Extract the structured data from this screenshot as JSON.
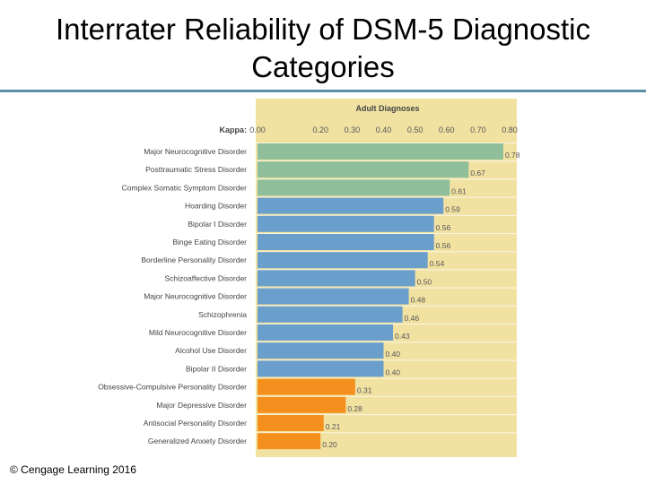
{
  "slide": {
    "title_line1": "Interrater Reliability of DSM-5 Diagnostic",
    "title_line2": "Categories",
    "footer": "© Cengage Learning 2016"
  },
  "chart_data": {
    "type": "bar",
    "orientation": "horizontal",
    "title": "Adult Diagnoses",
    "xlabel": "Kappa:",
    "xlim": [
      0,
      0.82
    ],
    "tick_values": [
      0.0,
      0.2,
      0.3,
      0.4,
      0.5,
      0.6,
      0.7,
      0.8
    ],
    "tick_labels": [
      "0.00",
      "0.20",
      "0.30",
      "0.40",
      "0.50",
      "0.60",
      "0.70",
      "0.80"
    ],
    "categories": [
      "Major Neurocognitive Disorder",
      "Posttraumatic Stress Disorder",
      "Complex Somatic Symptom Disorder",
      "Hoarding Disorder",
      "Bipolar I Disorder",
      "Binge Eating Disorder",
      "Borderline Personality Disorder",
      "Schizoaffective Disorder",
      "Major Neurocognitive Disorder",
      "Schizophrenia",
      "Mild Neurocognitive Disorder",
      "Alcohol Use Disorder",
      "Bipolar II Disorder",
      "Obsessive-Compulsive Personality Disorder",
      "Major Depressive Disorder",
      "Antisocial Personality Disorder",
      "Generalized Anxiety Disorder"
    ],
    "values": [
      0.78,
      0.67,
      0.61,
      0.59,
      0.56,
      0.56,
      0.54,
      0.5,
      0.48,
      0.46,
      0.43,
      0.4,
      0.4,
      0.31,
      0.28,
      0.21,
      0.2
    ],
    "value_labels": [
      "0.78",
      "0.67",
      "0.61",
      "0.59",
      "0.56",
      "0.56",
      "0.54",
      "0.50",
      "0.48",
      "0.46",
      "0.43",
      "0.40",
      "0.40",
      "0.31",
      "0.28",
      "0.21",
      "0.20"
    ],
    "bar_colors": [
      "#8fbf9a",
      "#8fbf9a",
      "#8fbf9a",
      "#6a9ecb",
      "#6a9ecb",
      "#6a9ecb",
      "#6a9ecb",
      "#6a9ecb",
      "#6a9ecb",
      "#6a9ecb",
      "#6a9ecb",
      "#6a9ecb",
      "#6a9ecb",
      "#f5901e",
      "#f5901e",
      "#f5901e",
      "#f5901e"
    ],
    "colors": {
      "plot_background": "#f1e2a2",
      "band_background": "#ffffff",
      "axis_text": "#555555",
      "title_text": "#444444"
    }
  }
}
